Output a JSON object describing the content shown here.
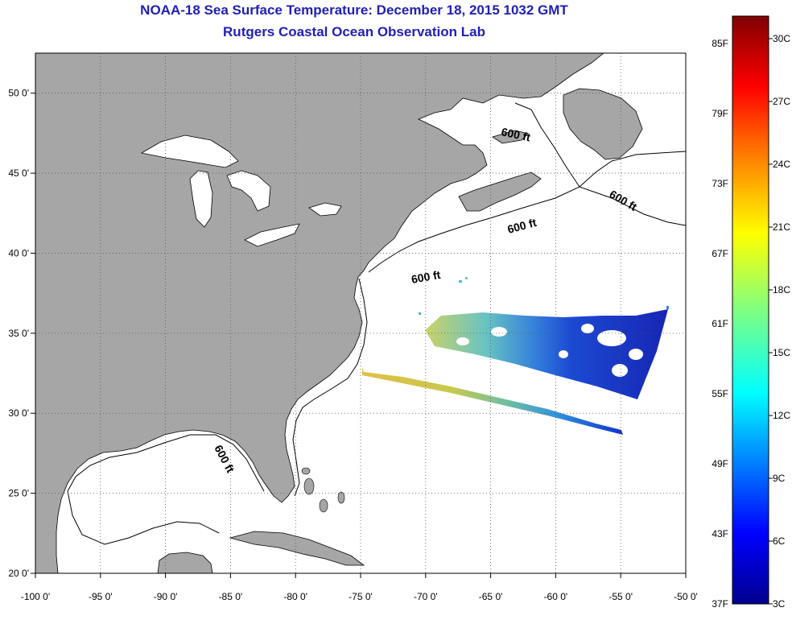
{
  "header": {
    "title": "NOAA-18 Sea Surface Temperature:  December 18, 2015 1032 GMT",
    "subtitle": "Rutgers Coastal Ocean Observation Lab"
  },
  "map": {
    "lon_range": [
      -100,
      -50
    ],
    "lat_range": [
      20,
      52.5
    ],
    "lon_ticks": [
      "-100 0'",
      "-95 0'",
      "-90 0'",
      "-85 0'",
      "-80 0'",
      "-75 0'",
      "-70 0'",
      "-65 0'",
      "-60 0'",
      "-55 0'",
      "-50 0'"
    ],
    "lat_ticks": [
      "50 0'",
      "45 0'",
      "40 0'",
      "35 0'",
      "30 0'",
      "25 0'",
      "20 0'"
    ],
    "grid": "dotted",
    "land_color": "#a6a6a6",
    "ocean_color": "#ffffff",
    "depth_labels": [
      "600 ft",
      "600 ft",
      "600 ft",
      "600 ft",
      "600 ft"
    ]
  },
  "colorbar": {
    "colors": [
      "#00008f",
      "#0000ff",
      "#0080ff",
      "#00ffff",
      "#80ff80",
      "#ffff00",
      "#ff8000",
      "#ff0000",
      "#800000"
    ],
    "fahrenheit": [
      "85F",
      "79F",
      "73F",
      "67F",
      "61F",
      "55F",
      "49F",
      "43F",
      "37F"
    ],
    "celsius": [
      "30C",
      "27C",
      "24C",
      "21C",
      "18C",
      "15C",
      "12C",
      "9C",
      "6C",
      "3C"
    ]
  }
}
